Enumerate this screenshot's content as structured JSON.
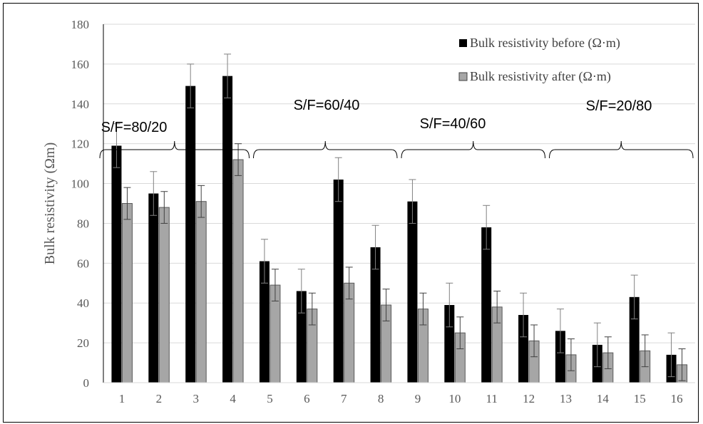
{
  "chart_data": {
    "type": "bar",
    "categories": [
      "1",
      "2",
      "3",
      "4",
      "5",
      "6",
      "7",
      "8",
      "9",
      "10",
      "11",
      "12",
      "13",
      "14",
      "15",
      "16"
    ],
    "series": [
      {
        "name": "Bulk resistivity before (Ω·m)",
        "color": "#000000",
        "values": [
          119,
          95,
          149,
          154,
          61,
          46,
          102,
          68,
          91,
          39,
          78,
          34,
          26,
          19,
          43,
          14
        ],
        "errors": [
          11,
          11,
          11,
          11,
          11,
          11,
          11,
          11,
          11,
          11,
          11,
          11,
          11,
          11,
          11,
          11
        ]
      },
      {
        "name": "Bulk resistivity after (Ω·m)",
        "color": "#a6a6a6",
        "values": [
          90,
          88,
          91,
          112,
          49,
          37,
          50,
          39,
          37,
          25,
          38,
          21,
          14,
          15,
          16,
          9
        ],
        "errors": [
          8,
          8,
          8,
          8,
          8,
          8,
          8,
          8,
          8,
          8,
          8,
          8,
          8,
          8,
          8,
          8
        ]
      }
    ],
    "xlabel": "",
    "ylabel": "Bulk resistivity (Ωm)",
    "ylim": [
      0,
      180
    ],
    "yticks": [
      0,
      20,
      40,
      60,
      80,
      100,
      120,
      140,
      160,
      180
    ],
    "grid": true,
    "legend": "top-right",
    "groups": [
      {
        "label": "S/F=80/20",
        "start": 1,
        "end": 4
      },
      {
        "label": "S/F=60/40",
        "start": 5,
        "end": 8
      },
      {
        "label": "S/F=40/60",
        "start": 9,
        "end": 12
      },
      {
        "label": "S/F=20/80",
        "start": 13,
        "end": 16
      }
    ]
  }
}
